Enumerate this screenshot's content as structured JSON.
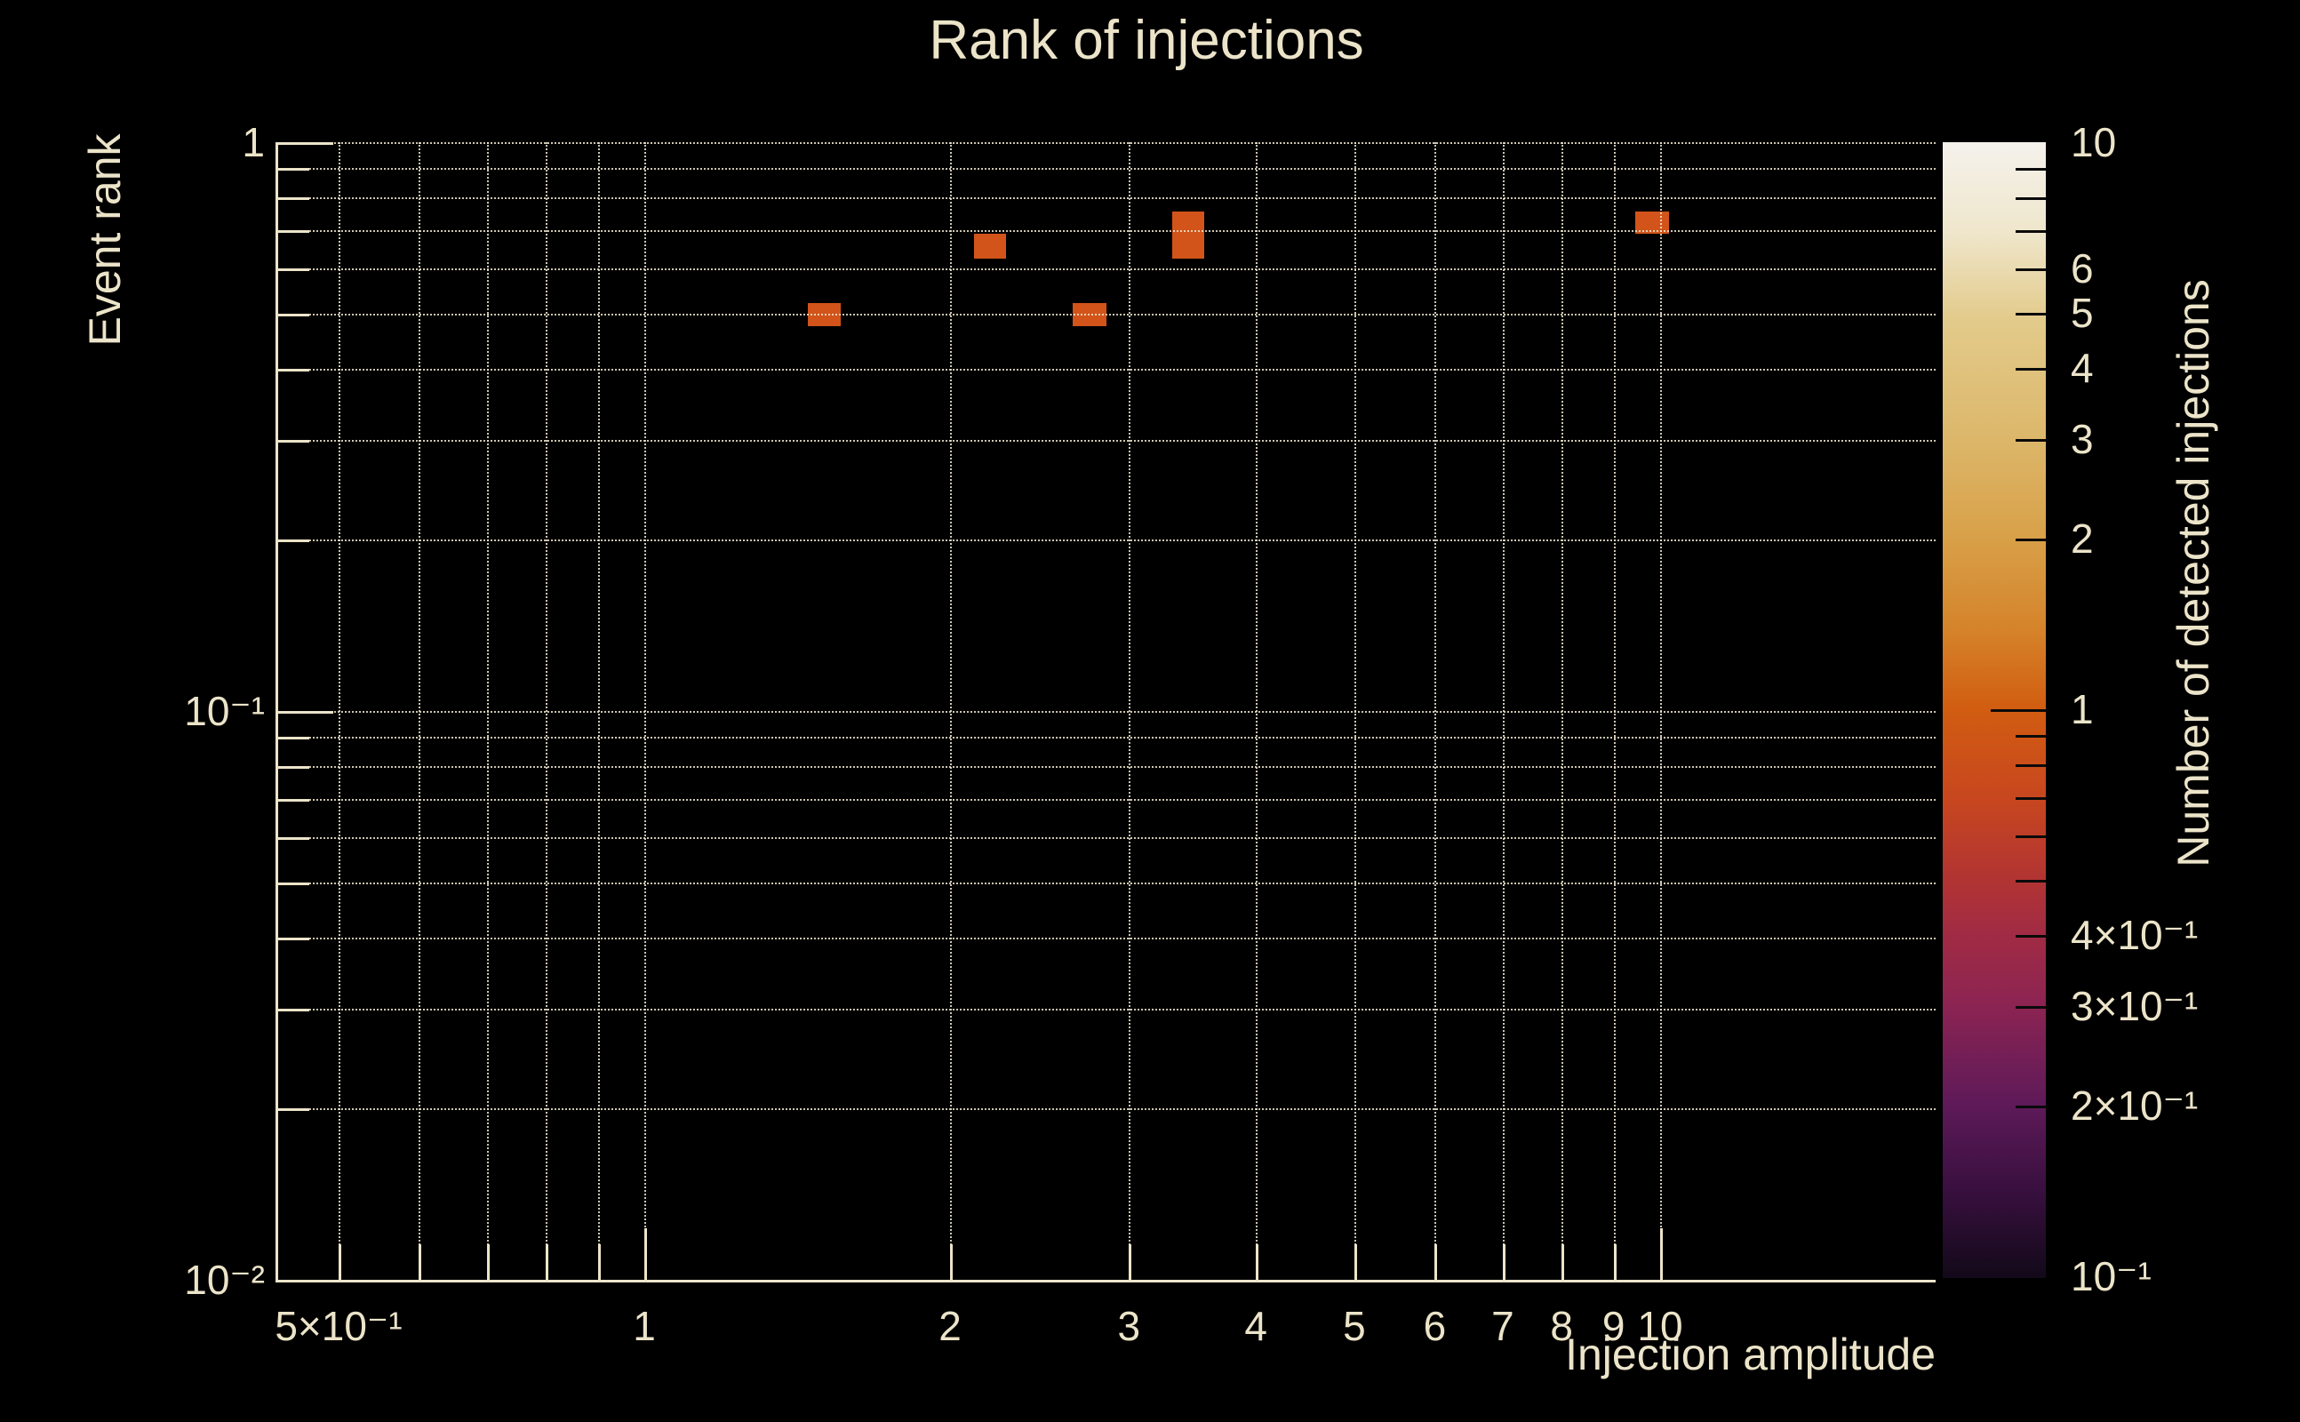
{
  "styles": {
    "background": "#000000",
    "foreground": "#ece4c9",
    "grid_color": "rgba(240,232,208,0.85)",
    "cell_color": "#d2541a"
  },
  "chart_data": {
    "type": "heatmap",
    "title": "Rank of injections",
    "xlabel": "Injection amplitude",
    "ylabel": "Event rank",
    "colorbar_label": "Number of detected injections",
    "x_scale": "log",
    "y_scale": "log",
    "color_scale": "log",
    "xlim": [
      0.436,
      18.7
    ],
    "ylim": [
      0.01,
      1
    ],
    "clim": [
      0.1,
      10
    ],
    "grid": "both axes, dotted, cream on black",
    "legend_position": "colorbar right",
    "cells": [
      {
        "amplitude_bin": [
          1.45,
          1.56
        ],
        "rank_bin": [
          0.475,
          0.522
        ],
        "count": 1
      },
      {
        "amplitude_bin": [
          2.11,
          2.27
        ],
        "rank_bin": [
          0.625,
          0.69
        ],
        "count": 1
      },
      {
        "amplitude_bin": [
          2.64,
          2.85
        ],
        "rank_bin": [
          0.475,
          0.522
        ],
        "count": 1
      },
      {
        "amplitude_bin": [
          3.31,
          3.56
        ],
        "rank_bin": [
          0.625,
          0.69
        ],
        "count": 1
      },
      {
        "amplitude_bin": [
          3.31,
          3.56
        ],
        "rank_bin": [
          0.69,
          0.755
        ],
        "count": 1
      },
      {
        "amplitude_bin": [
          9.45,
          10.2
        ],
        "rank_bin": [
          0.69,
          0.755
        ],
        "count": 1
      }
    ],
    "x_ticks": [
      {
        "v": 0.5,
        "label": "5×10⁻¹",
        "major": false
      },
      {
        "v": 0.6,
        "major": false
      },
      {
        "v": 0.7,
        "major": false
      },
      {
        "v": 0.8,
        "major": false
      },
      {
        "v": 0.9,
        "major": false
      },
      {
        "v": 1,
        "label": "1",
        "major": true
      },
      {
        "v": 2,
        "label": "2",
        "major": false
      },
      {
        "v": 3,
        "label": "3",
        "major": false
      },
      {
        "v": 4,
        "label": "4",
        "major": false
      },
      {
        "v": 5,
        "label": "5",
        "major": false
      },
      {
        "v": 6,
        "label": "6",
        "major": false
      },
      {
        "v": 7,
        "label": "7",
        "major": false
      },
      {
        "v": 8,
        "label": "8",
        "major": false
      },
      {
        "v": 9,
        "label": "9",
        "major": false
      },
      {
        "v": 10,
        "label": "10",
        "major": true
      }
    ],
    "y_ticks": [
      {
        "v": 1,
        "label": "1",
        "major": true
      },
      {
        "v": 0.9,
        "major": false
      },
      {
        "v": 0.8,
        "major": false
      },
      {
        "v": 0.7,
        "major": false
      },
      {
        "v": 0.6,
        "major": false
      },
      {
        "v": 0.5,
        "major": false
      },
      {
        "v": 0.4,
        "major": false
      },
      {
        "v": 0.3,
        "major": false
      },
      {
        "v": 0.2,
        "major": false
      },
      {
        "v": 0.1,
        "label": "10⁻¹",
        "major": true
      },
      {
        "v": 0.09,
        "major": false
      },
      {
        "v": 0.08,
        "major": false
      },
      {
        "v": 0.07,
        "major": false
      },
      {
        "v": 0.06,
        "major": false
      },
      {
        "v": 0.05,
        "major": false
      },
      {
        "v": 0.04,
        "major": false
      },
      {
        "v": 0.03,
        "major": false
      },
      {
        "v": 0.02,
        "major": false
      },
      {
        "v": 0.01,
        "label": "10⁻²",
        "major": true
      }
    ],
    "cbar_ticks": [
      {
        "v": 10,
        "label": "10",
        "major": true
      },
      {
        "v": 9,
        "major": false
      },
      {
        "v": 8,
        "major": false
      },
      {
        "v": 7,
        "major": false
      },
      {
        "v": 6,
        "label": "6",
        "major": false
      },
      {
        "v": 5,
        "label": "5",
        "major": false
      },
      {
        "v": 4,
        "label": "4",
        "major": false
      },
      {
        "v": 3,
        "label": "3",
        "major": false
      },
      {
        "v": 2,
        "label": "2",
        "major": false
      },
      {
        "v": 1,
        "label": "1",
        "major": true
      },
      {
        "v": 0.9,
        "major": false
      },
      {
        "v": 0.8,
        "major": false
      },
      {
        "v": 0.7,
        "major": false
      },
      {
        "v": 0.6,
        "major": false
      },
      {
        "v": 0.5,
        "major": false
      },
      {
        "v": 0.4,
        "label": "4×10⁻¹",
        "major": false
      },
      {
        "v": 0.3,
        "label": "3×10⁻¹",
        "major": false
      },
      {
        "v": 0.2,
        "label": "2×10⁻¹",
        "major": false
      },
      {
        "v": 0.1,
        "label": "10⁻¹",
        "major": true
      }
    ],
    "colormap_stops": [
      [
        0.0,
        "#f5f2ec"
      ],
      [
        0.08,
        "#efe6cb"
      ],
      [
        0.155,
        "#e3cb8c"
      ],
      [
        0.262,
        "#dcb76a"
      ],
      [
        0.349,
        "#d8a048"
      ],
      [
        0.43,
        "#d5832a"
      ],
      [
        0.498,
        "#d15d11"
      ],
      [
        0.577,
        "#c8471f"
      ],
      [
        0.648,
        "#b23432"
      ],
      [
        0.697,
        "#a12b44"
      ],
      [
        0.759,
        "#8c2452"
      ],
      [
        0.847,
        "#5e1a59"
      ],
      [
        0.92,
        "#3a1040"
      ],
      [
        1.0,
        "#120919"
      ]
    ]
  }
}
